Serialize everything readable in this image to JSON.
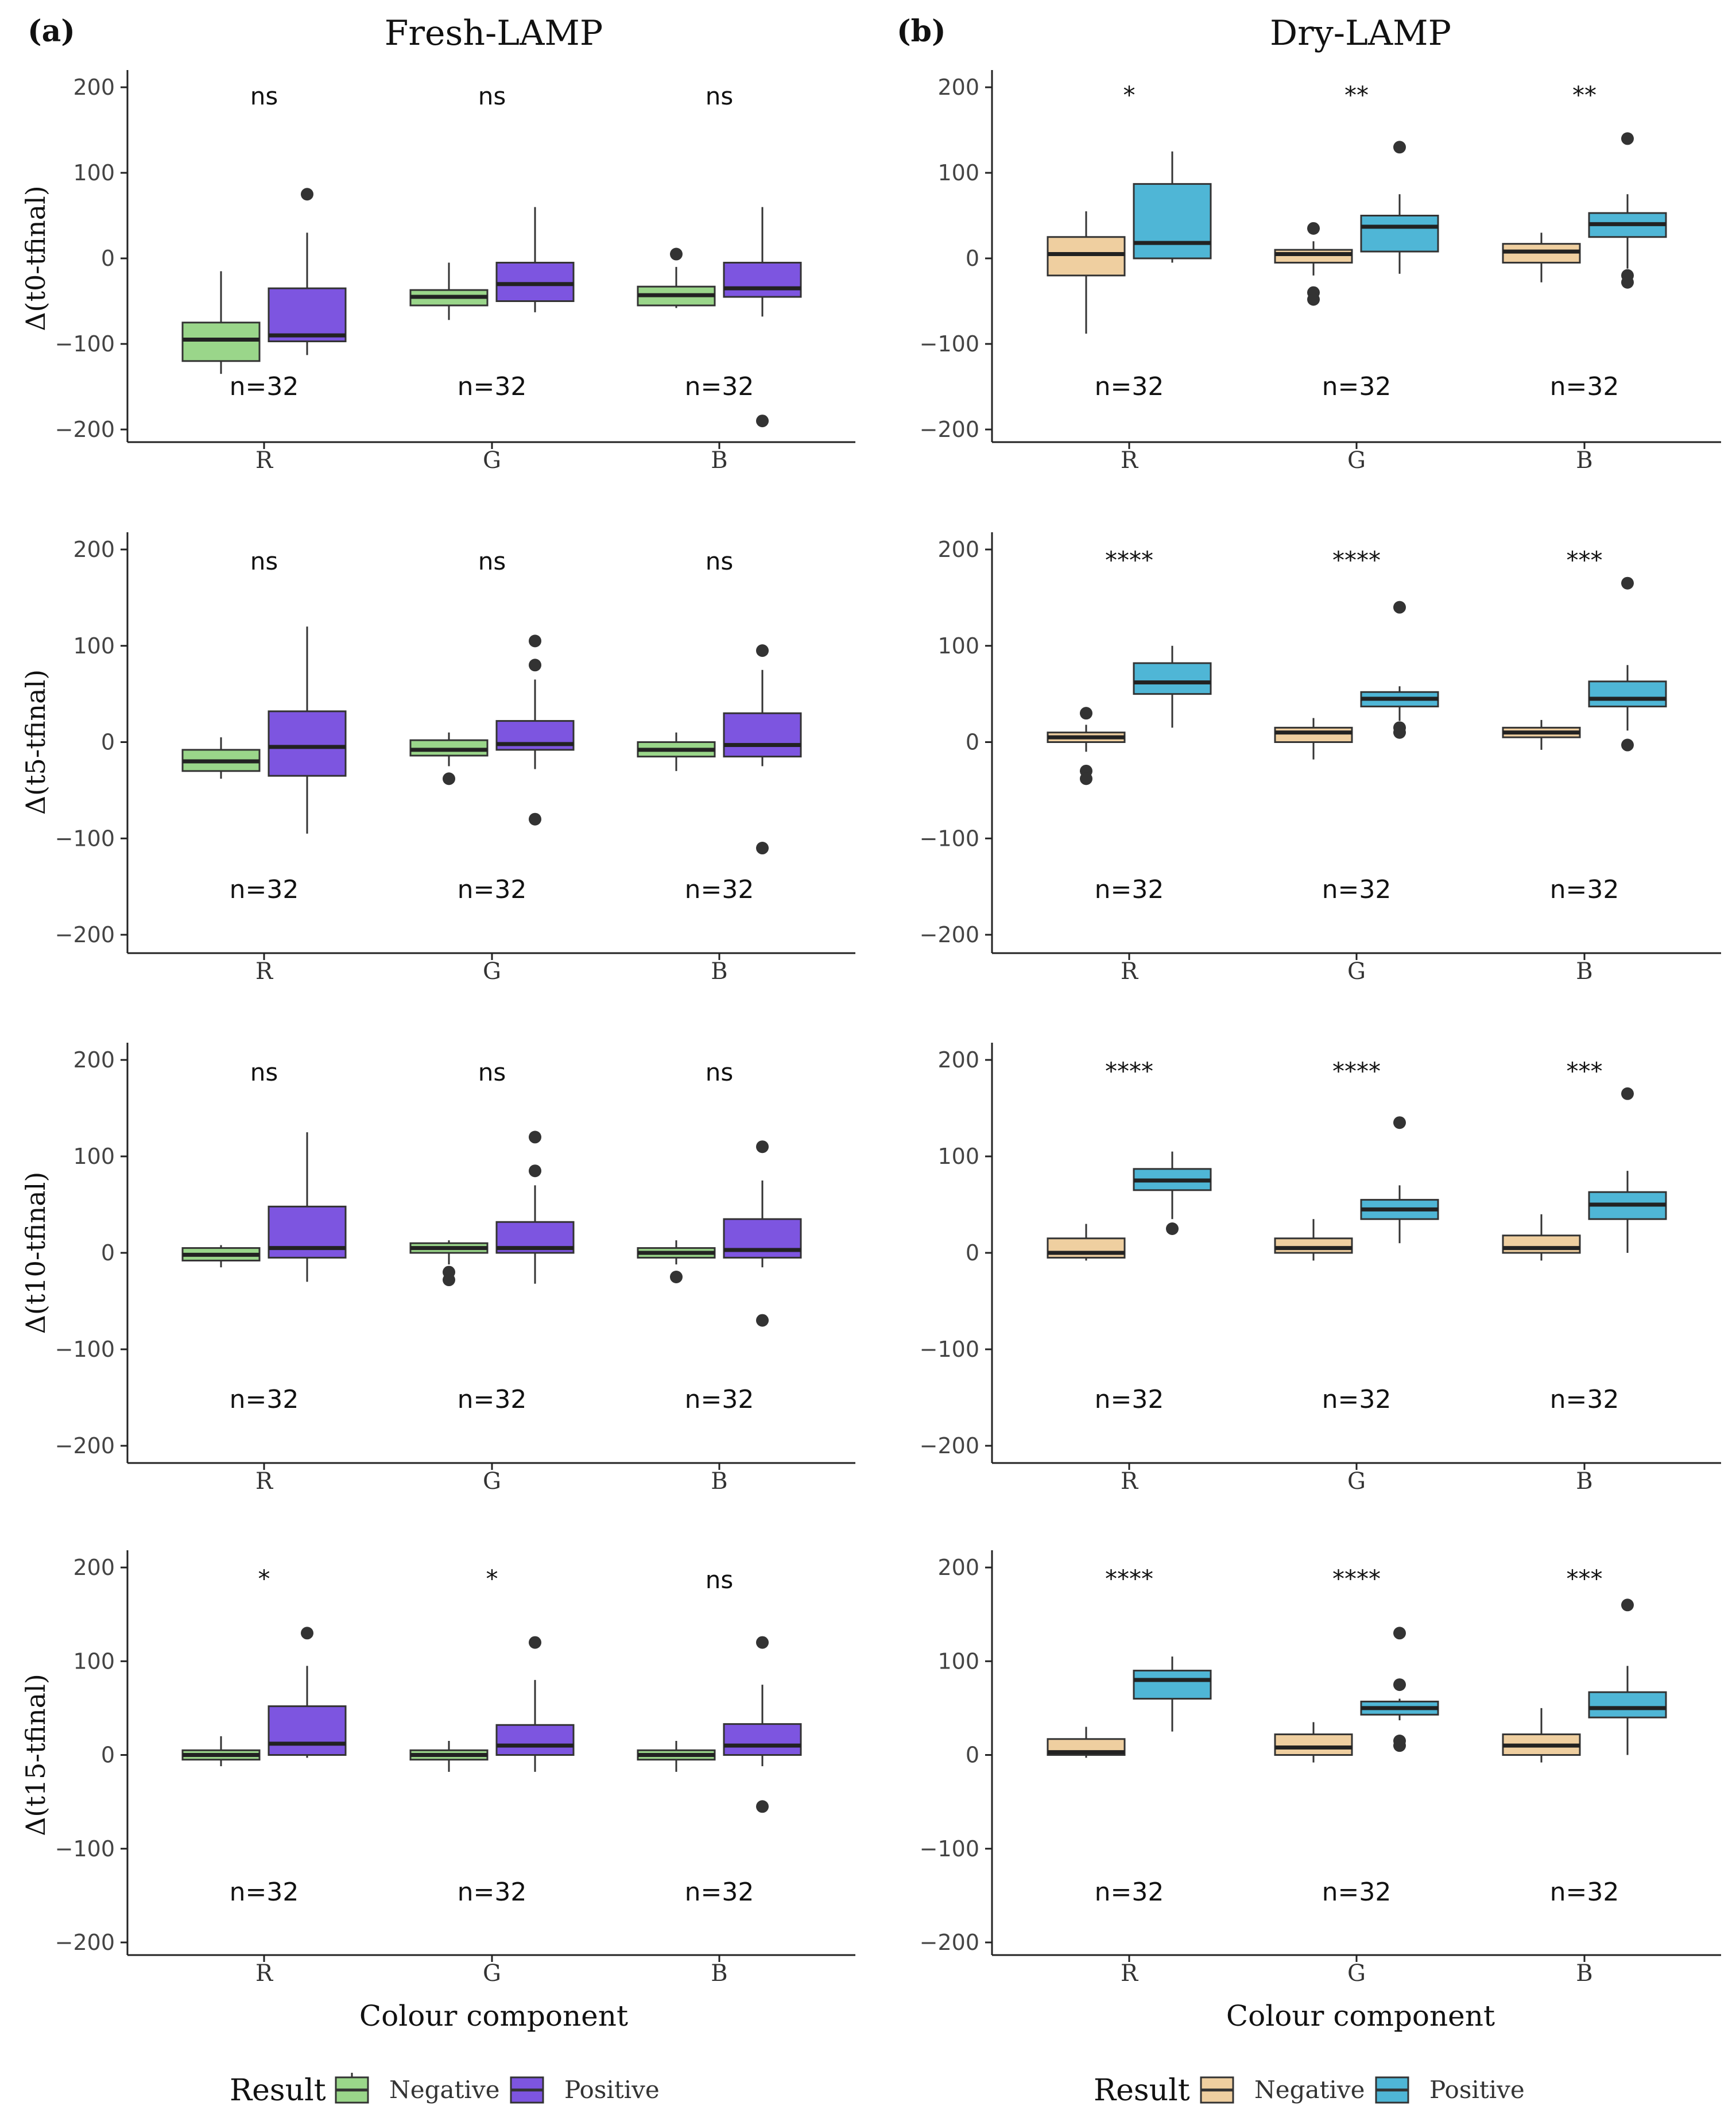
{
  "figure": {
    "panel_a": {
      "tag": "(a)",
      "title": "Fresh-LAMP",
      "xlabel": "Colour component"
    },
    "panel_b": {
      "tag": "(b)",
      "title": "Dry-LAMP",
      "xlabel": "Colour component"
    },
    "legend_a": {
      "title": "Result",
      "items": [
        {
          "label": "Negative",
          "color": "#9ad68a"
        },
        {
          "label": "Positive",
          "color": "#7d55e0"
        }
      ]
    },
    "legend_b": {
      "title": "Result",
      "items": [
        {
          "label": "Negative",
          "color": "#efcfa0"
        },
        {
          "label": "Positive",
          "color": "#4fb6d6"
        }
      ]
    }
  },
  "chart_data": [
    {
      "type": "box",
      "panel": "a",
      "row": 0,
      "title": "Fresh-LAMP",
      "ylabel": "Δ(t0-tfinal)",
      "xlabel": "",
      "ylim": [
        -200,
        200
      ],
      "yticks": [
        -200,
        -100,
        0,
        100,
        200
      ],
      "categories": [
        "R",
        "G",
        "B"
      ],
      "significance": [
        "ns",
        "ns",
        "ns"
      ],
      "n_labels": [
        "n=32",
        "n=32",
        "n=32"
      ],
      "series": [
        {
          "name": "Negative",
          "color": "#9ad68a",
          "boxes": [
            {
              "low": -135,
              "q1": -120,
              "median": -95,
              "q3": -75,
              "high": -15,
              "outliers": []
            },
            {
              "low": -72,
              "q1": -55,
              "median": -45,
              "q3": -37,
              "high": -5,
              "outliers": []
            },
            {
              "low": -58,
              "q1": -55,
              "median": -43,
              "q3": -33,
              "high": -10,
              "outliers": [
                5
              ]
            }
          ]
        },
        {
          "name": "Positive",
          "color": "#7d55e0",
          "boxes": [
            {
              "low": -113,
              "q1": -97,
              "median": -90,
              "q3": -35,
              "high": 30,
              "outliers": [
                75
              ]
            },
            {
              "low": -63,
              "q1": -50,
              "median": -30,
              "q3": -5,
              "high": 60,
              "outliers": []
            },
            {
              "low": -68,
              "q1": -45,
              "median": -35,
              "q3": -5,
              "high": 60,
              "outliers": [
                -190
              ]
            }
          ]
        }
      ]
    },
    {
      "type": "box",
      "panel": "b",
      "row": 0,
      "title": "Dry-LAMP",
      "ylabel": "",
      "xlabel": "",
      "ylim": [
        -200,
        200
      ],
      "yticks": [
        -200,
        -100,
        0,
        100,
        200
      ],
      "categories": [
        "R",
        "G",
        "B"
      ],
      "significance": [
        "*",
        "**",
        "**"
      ],
      "n_labels": [
        "n=32",
        "n=32",
        "n=32"
      ],
      "series": [
        {
          "name": "Negative",
          "color": "#efcfa0",
          "boxes": [
            {
              "low": -88,
              "q1": -20,
              "median": 5,
              "q3": 25,
              "high": 55,
              "outliers": []
            },
            {
              "low": -20,
              "q1": -5,
              "median": 5,
              "q3": 10,
              "high": 20,
              "outliers": [
                35,
                -40,
                -48
              ]
            },
            {
              "low": -28,
              "q1": -5,
              "median": 8,
              "q3": 17,
              "high": 30,
              "outliers": []
            }
          ]
        },
        {
          "name": "Positive",
          "color": "#4fb6d6",
          "boxes": [
            {
              "low": -5,
              "q1": 0,
              "median": 18,
              "q3": 87,
              "high": 125,
              "outliers": []
            },
            {
              "low": -18,
              "q1": 8,
              "median": 37,
              "q3": 50,
              "high": 75,
              "outliers": [
                130
              ]
            },
            {
              "low": -12,
              "q1": 25,
              "median": 40,
              "q3": 53,
              "high": 75,
              "outliers": [
                140,
                -20,
                -28
              ]
            }
          ]
        }
      ]
    },
    {
      "type": "box",
      "panel": "a",
      "row": 1,
      "title": "",
      "ylabel": "Δ(t5-tfinal)",
      "xlabel": "",
      "ylim": [
        -200,
        200
      ],
      "yticks": [
        -200,
        -100,
        0,
        100,
        200
      ],
      "categories": [
        "R",
        "G",
        "B"
      ],
      "significance": [
        "ns",
        "ns",
        "ns"
      ],
      "n_labels": [
        "n=32",
        "n=32",
        "n=32"
      ],
      "series": [
        {
          "name": "Negative",
          "color": "#9ad68a",
          "boxes": [
            {
              "low": -38,
              "q1": -30,
              "median": -20,
              "q3": -8,
              "high": 5,
              "outliers": []
            },
            {
              "low": -25,
              "q1": -14,
              "median": -8,
              "q3": 2,
              "high": 10,
              "outliers": [
                -38
              ]
            },
            {
              "low": -30,
              "q1": -15,
              "median": -8,
              "q3": 0,
              "high": 10,
              "outliers": []
            }
          ]
        },
        {
          "name": "Positive",
          "color": "#7d55e0",
          "boxes": [
            {
              "low": -95,
              "q1": -35,
              "median": -5,
              "q3": 32,
              "high": 120,
              "outliers": []
            },
            {
              "low": -28,
              "q1": -8,
              "median": -2,
              "q3": 22,
              "high": 65,
              "outliers": [
                105,
                80,
                -80
              ]
            },
            {
              "low": -25,
              "q1": -15,
              "median": -3,
              "q3": 30,
              "high": 75,
              "outliers": [
                95,
                -110
              ]
            }
          ]
        }
      ]
    },
    {
      "type": "box",
      "panel": "b",
      "row": 1,
      "title": "",
      "ylabel": "",
      "xlabel": "",
      "ylim": [
        -200,
        200
      ],
      "yticks": [
        -200,
        -100,
        0,
        100,
        200
      ],
      "categories": [
        "R",
        "G",
        "B"
      ],
      "significance": [
        "****",
        "****",
        "***"
      ],
      "n_labels": [
        "n=32",
        "n=32",
        "n=32"
      ],
      "series": [
        {
          "name": "Negative",
          "color": "#efcfa0",
          "boxes": [
            {
              "low": -10,
              "q1": 0,
              "median": 5,
              "q3": 10,
              "high": 18,
              "outliers": [
                30,
                -30,
                -38
              ]
            },
            {
              "low": -18,
              "q1": 0,
              "median": 10,
              "q3": 15,
              "high": 25,
              "outliers": []
            },
            {
              "low": -8,
              "q1": 5,
              "median": 10,
              "q3": 15,
              "high": 23,
              "outliers": []
            }
          ]
        },
        {
          "name": "Positive",
          "color": "#4fb6d6",
          "boxes": [
            {
              "low": 15,
              "q1": 50,
              "median": 62,
              "q3": 82,
              "high": 100,
              "outliers": []
            },
            {
              "low": 22,
              "q1": 37,
              "median": 45,
              "q3": 52,
              "high": 58,
              "outliers": [
                140,
                15,
                10
              ]
            },
            {
              "low": 12,
              "q1": 37,
              "median": 45,
              "q3": 63,
              "high": 80,
              "outliers": [
                165,
                -3
              ]
            }
          ]
        }
      ]
    },
    {
      "type": "box",
      "panel": "a",
      "row": 2,
      "title": "",
      "ylabel": "Δ(t10-tfinal)",
      "xlabel": "",
      "ylim": [
        -200,
        200
      ],
      "yticks": [
        -200,
        -100,
        0,
        100,
        200
      ],
      "categories": [
        "R",
        "G",
        "B"
      ],
      "significance": [
        "ns",
        "ns",
        "ns"
      ],
      "n_labels": [
        "n=32",
        "n=32",
        "n=32"
      ],
      "series": [
        {
          "name": "Negative",
          "color": "#9ad68a",
          "boxes": [
            {
              "low": -15,
              "q1": -8,
              "median": -2,
              "q3": 5,
              "high": 8,
              "outliers": []
            },
            {
              "low": -12,
              "q1": 0,
              "median": 5,
              "q3": 10,
              "high": 13,
              "outliers": [
                -20,
                -28
              ]
            },
            {
              "low": -12,
              "q1": -5,
              "median": 0,
              "q3": 5,
              "high": 13,
              "outliers": [
                -25
              ]
            }
          ]
        },
        {
          "name": "Positive",
          "color": "#7d55e0",
          "boxes": [
            {
              "low": -30,
              "q1": -5,
              "median": 5,
              "q3": 48,
              "high": 125,
              "outliers": []
            },
            {
              "low": -32,
              "q1": 0,
              "median": 5,
              "q3": 32,
              "high": 70,
              "outliers": [
                120,
                85
              ]
            },
            {
              "low": -15,
              "q1": -5,
              "median": 3,
              "q3": 35,
              "high": 75,
              "outliers": [
                110,
                -70
              ]
            }
          ]
        }
      ]
    },
    {
      "type": "box",
      "panel": "b",
      "row": 2,
      "title": "",
      "ylabel": "",
      "xlabel": "",
      "ylim": [
        -200,
        200
      ],
      "yticks": [
        -200,
        -100,
        0,
        100,
        200
      ],
      "categories": [
        "R",
        "G",
        "B"
      ],
      "significance": [
        "****",
        "****",
        "***"
      ],
      "n_labels": [
        "n=32",
        "n=32",
        "n=32"
      ],
      "series": [
        {
          "name": "Negative",
          "color": "#efcfa0",
          "boxes": [
            {
              "low": -8,
              "q1": -5,
              "median": 0,
              "q3": 15,
              "high": 30,
              "outliers": []
            },
            {
              "low": -8,
              "q1": 0,
              "median": 5,
              "q3": 15,
              "high": 35,
              "outliers": []
            },
            {
              "low": -8,
              "q1": 0,
              "median": 5,
              "q3": 18,
              "high": 40,
              "outliers": []
            }
          ]
        },
        {
          "name": "Positive",
          "color": "#4fb6d6",
          "boxes": [
            {
              "low": 35,
              "q1": 65,
              "median": 75,
              "q3": 87,
              "high": 105,
              "outliers": [
                25
              ]
            },
            {
              "low": 10,
              "q1": 35,
              "median": 45,
              "q3": 55,
              "high": 70,
              "outliers": [
                135
              ]
            },
            {
              "low": 0,
              "q1": 35,
              "median": 50,
              "q3": 63,
              "high": 85,
              "outliers": [
                165
              ]
            }
          ]
        }
      ]
    },
    {
      "type": "box",
      "panel": "a",
      "row": 3,
      "title": "",
      "ylabel": "Δ(t15-tfinal)",
      "xlabel": "Colour component",
      "ylim": [
        -200,
        200
      ],
      "yticks": [
        -200,
        -100,
        0,
        100,
        200
      ],
      "categories": [
        "R",
        "G",
        "B"
      ],
      "significance": [
        "*",
        "*",
        "ns"
      ],
      "n_labels": [
        "n=32",
        "n=32",
        "n=32"
      ],
      "series": [
        {
          "name": "Negative",
          "color": "#9ad68a",
          "boxes": [
            {
              "low": -12,
              "q1": -5,
              "median": 0,
              "q3": 5,
              "high": 20,
              "outliers": []
            },
            {
              "low": -18,
              "q1": -5,
              "median": 0,
              "q3": 5,
              "high": 15,
              "outliers": []
            },
            {
              "low": -18,
              "q1": -5,
              "median": 0,
              "q3": 5,
              "high": 15,
              "outliers": []
            }
          ]
        },
        {
          "name": "Positive",
          "color": "#7d55e0",
          "boxes": [
            {
              "low": -3,
              "q1": 0,
              "median": 12,
              "q3": 52,
              "high": 95,
              "outliers": [
                130
              ]
            },
            {
              "low": -18,
              "q1": 0,
              "median": 10,
              "q3": 32,
              "high": 80,
              "outliers": [
                120
              ]
            },
            {
              "low": -12,
              "q1": 0,
              "median": 10,
              "q3": 33,
              "high": 75,
              "outliers": [
                120,
                -55
              ]
            }
          ]
        }
      ]
    },
    {
      "type": "box",
      "panel": "b",
      "row": 3,
      "title": "",
      "ylabel": "",
      "xlabel": "Colour component",
      "ylim": [
        -200,
        200
      ],
      "yticks": [
        -200,
        -100,
        0,
        100,
        200
      ],
      "categories": [
        "R",
        "G",
        "B"
      ],
      "significance": [
        "****",
        "****",
        "***"
      ],
      "n_labels": [
        "n=32",
        "n=32",
        "n=32"
      ],
      "series": [
        {
          "name": "Negative",
          "color": "#efcfa0",
          "boxes": [
            {
              "low": -3,
              "q1": 0,
              "median": 3,
              "q3": 17,
              "high": 30,
              "outliers": []
            },
            {
              "low": -8,
              "q1": 0,
              "median": 8,
              "q3": 22,
              "high": 35,
              "outliers": []
            },
            {
              "low": -8,
              "q1": 0,
              "median": 10,
              "q3": 22,
              "high": 50,
              "outliers": []
            }
          ]
        },
        {
          "name": "Positive",
          "color": "#4fb6d6",
          "boxes": [
            {
              "low": 25,
              "q1": 60,
              "median": 80,
              "q3": 90,
              "high": 105,
              "outliers": []
            },
            {
              "low": 37,
              "q1": 43,
              "median": 50,
              "q3": 57,
              "high": 60,
              "outliers": [
                130,
                75,
                15,
                10
              ]
            },
            {
              "low": 0,
              "q1": 40,
              "median": 50,
              "q3": 67,
              "high": 95,
              "outliers": [
                160
              ]
            }
          ]
        }
      ]
    }
  ]
}
